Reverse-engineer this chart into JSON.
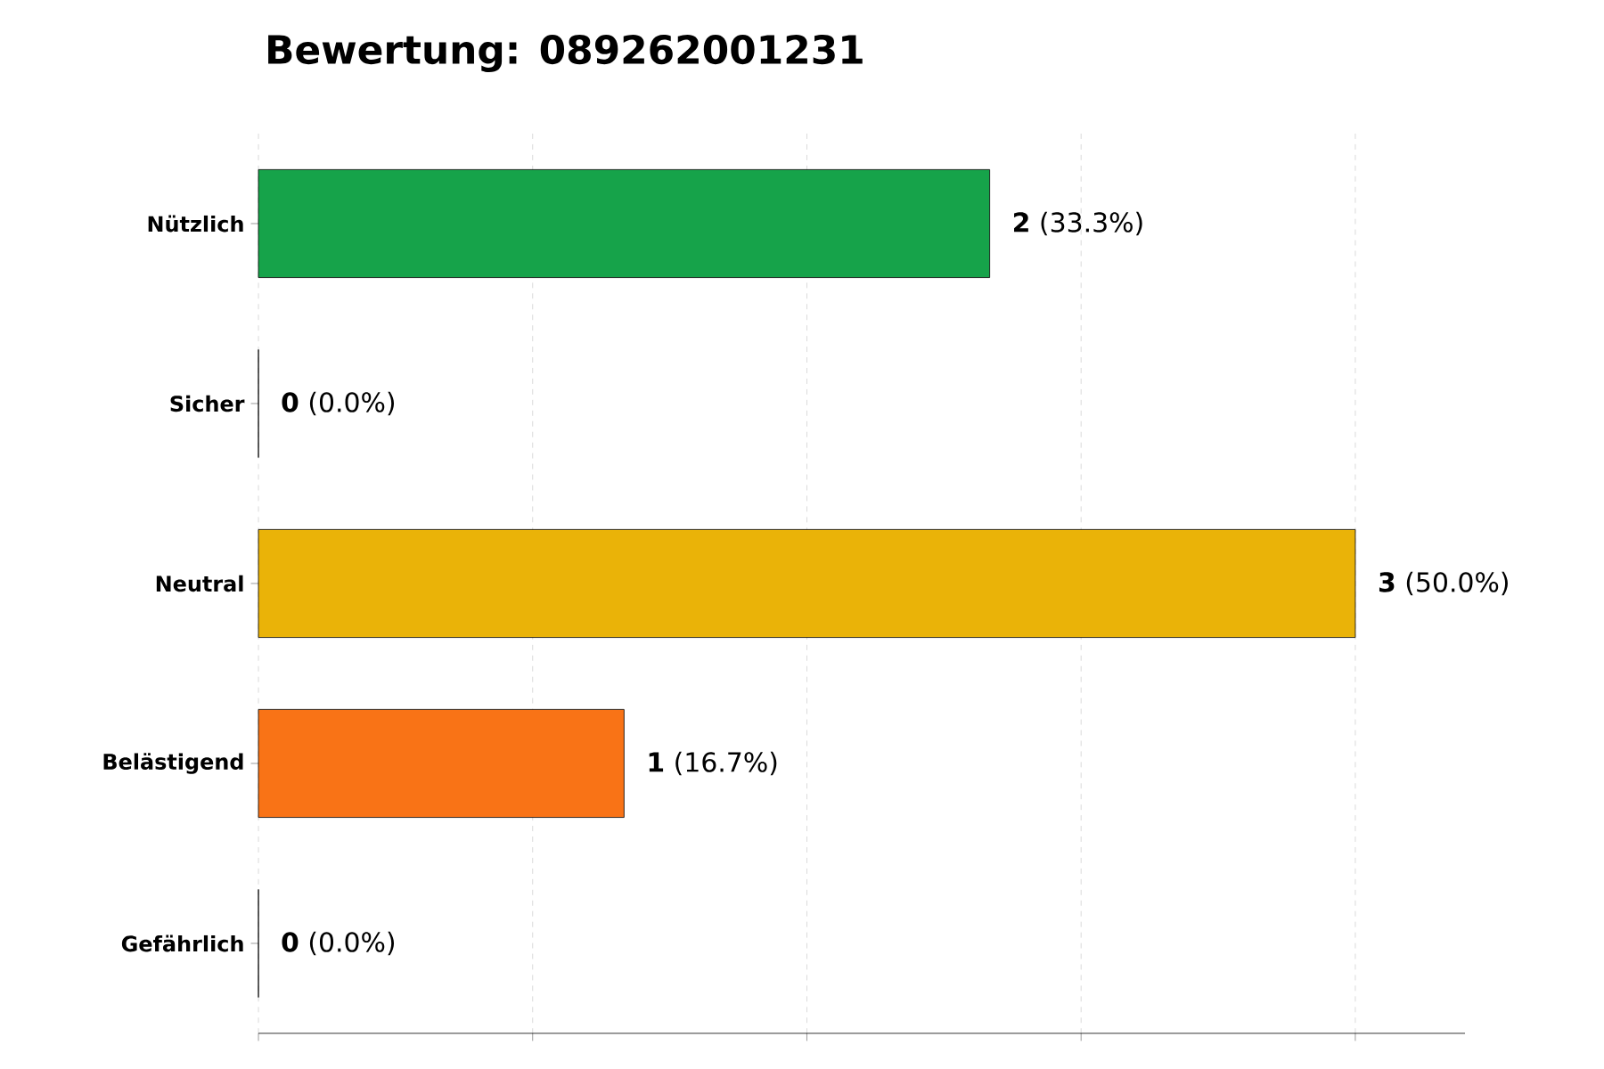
{
  "chart_data": {
    "type": "bar",
    "orientation": "horizontal",
    "title": "Bewertung: 089262001231",
    "categories": [
      "Nützlich",
      "Sicher",
      "Neutral",
      "Belästigend",
      "Gefährlich"
    ],
    "values": [
      2,
      0,
      3,
      1,
      0
    ],
    "colors": [
      "#16a34a",
      "#3b82f6",
      "#eab308",
      "#f97316",
      "#dc2626"
    ],
    "value_labels": [
      "**2** (33.3%)",
      "**0** (0.0%)",
      "**3** (50.0%)",
      "**1** (16.7%)",
      "**0** (0.0%)"
    ],
    "xlim": [
      0,
      3.3
    ],
    "xticks": [
      {
        "value": 0,
        "label": null
      },
      {
        "value": 0.75,
        "label": null
      },
      {
        "value": 1.5,
        "label": null
      },
      {
        "value": 2.25,
        "label": null
      },
      {
        "value": 3,
        "label": null
      }
    ],
    "grid": "x",
    "tick_labels": "y"
  }
}
